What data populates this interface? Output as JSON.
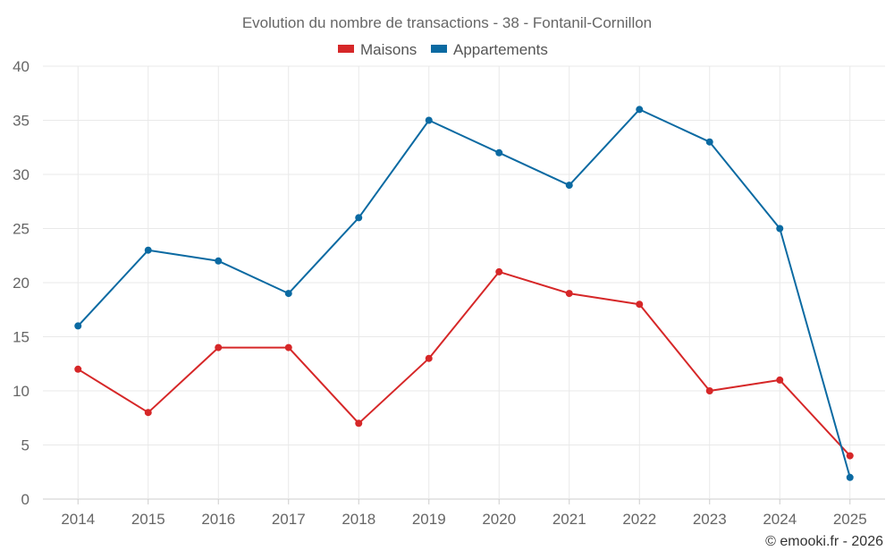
{
  "chart_data": {
    "type": "line",
    "title": "Evolution du nombre de transactions - 38 - Fontanil-Cornillon",
    "categories": [
      "2014",
      "2015",
      "2016",
      "2017",
      "2018",
      "2019",
      "2020",
      "2021",
      "2022",
      "2023",
      "2024",
      "2025"
    ],
    "series": [
      {
        "name": "Maisons",
        "color": "#d62728",
        "values": [
          12,
          8,
          14,
          14,
          7,
          13,
          21,
          19,
          18,
          10,
          11,
          4
        ]
      },
      {
        "name": "Appartements",
        "color": "#0b6aa2",
        "values": [
          16,
          23,
          22,
          19,
          26,
          35,
          32,
          29,
          36,
          33,
          25,
          2
        ]
      }
    ],
    "ylim": [
      0,
      40
    ],
    "yticks": [
      0,
      5,
      10,
      15,
      20,
      25,
      30,
      35,
      40
    ],
    "grid": true,
    "legend_position": "top-center",
    "xlabel": "",
    "ylabel": ""
  },
  "credit": "© emooki.fr - 2026"
}
